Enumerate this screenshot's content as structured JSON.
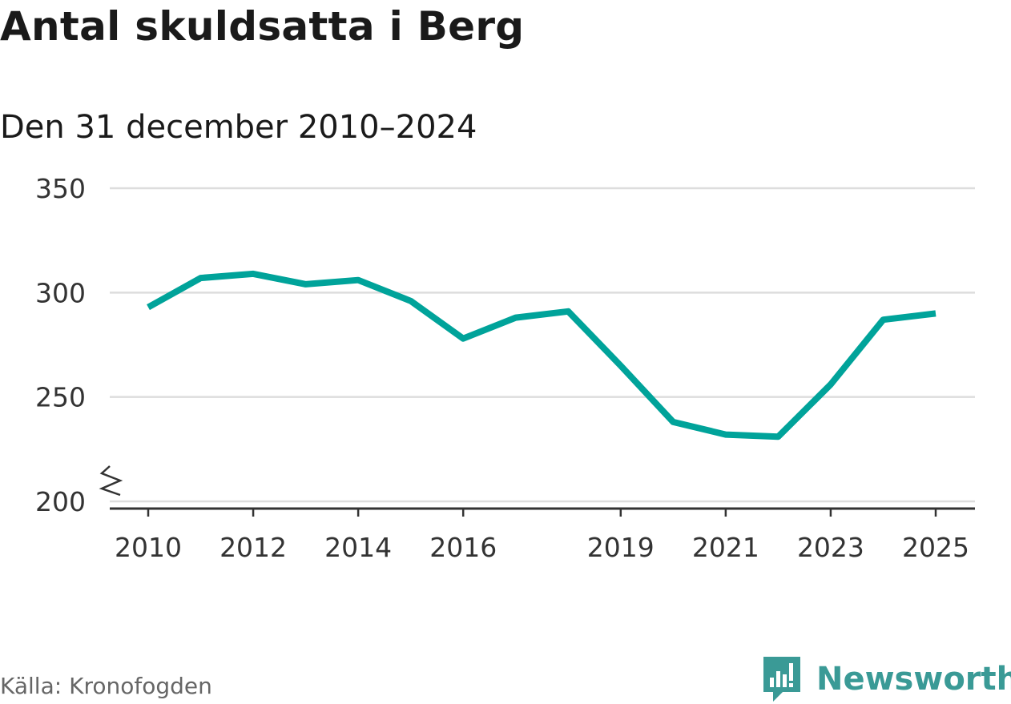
{
  "header": {
    "title": "Antal skuldsatta i Berg",
    "subtitle": "Den 31 december 2010–2024"
  },
  "footer": {
    "source": "Källa: Kronofogden",
    "brand": "Newsworthy"
  },
  "colors": {
    "line": "#00a39a",
    "grid": "#dddddd",
    "axis": "#333333",
    "brand": "#3a9a96"
  },
  "chart_data": {
    "type": "line",
    "title": "Antal skuldsatta i Berg",
    "subtitle": "Den 31 december 2010–2024",
    "xlabel": "",
    "ylabel": "",
    "ylim": [
      200,
      350
    ],
    "xlim": [
      2009.65,
      2025.7
    ],
    "y_ticks": [
      200,
      250,
      300,
      350
    ],
    "y_tick_labels": [
      "200",
      "250",
      "300",
      "350"
    ],
    "x_ticks": [
      2010,
      2012,
      2014,
      2016,
      2019,
      2021,
      2023,
      2025
    ],
    "x_tick_labels": [
      "2010",
      "2012",
      "2014",
      "2016",
      "2019",
      "2021",
      "2023",
      "2025"
    ],
    "axis_break": true,
    "grid": true,
    "series": [
      {
        "name": "Antal skuldsatta",
        "x": [
          2010,
          2011,
          2012,
          2013,
          2014,
          2015,
          2016,
          2017,
          2018,
          2019,
          2020,
          2021,
          2022,
          2023,
          2024,
          2025
        ],
        "values": [
          293,
          307,
          309,
          304,
          306,
          296,
          278,
          288,
          291,
          265,
          238,
          232,
          231,
          256,
          287,
          290
        ]
      }
    ]
  }
}
